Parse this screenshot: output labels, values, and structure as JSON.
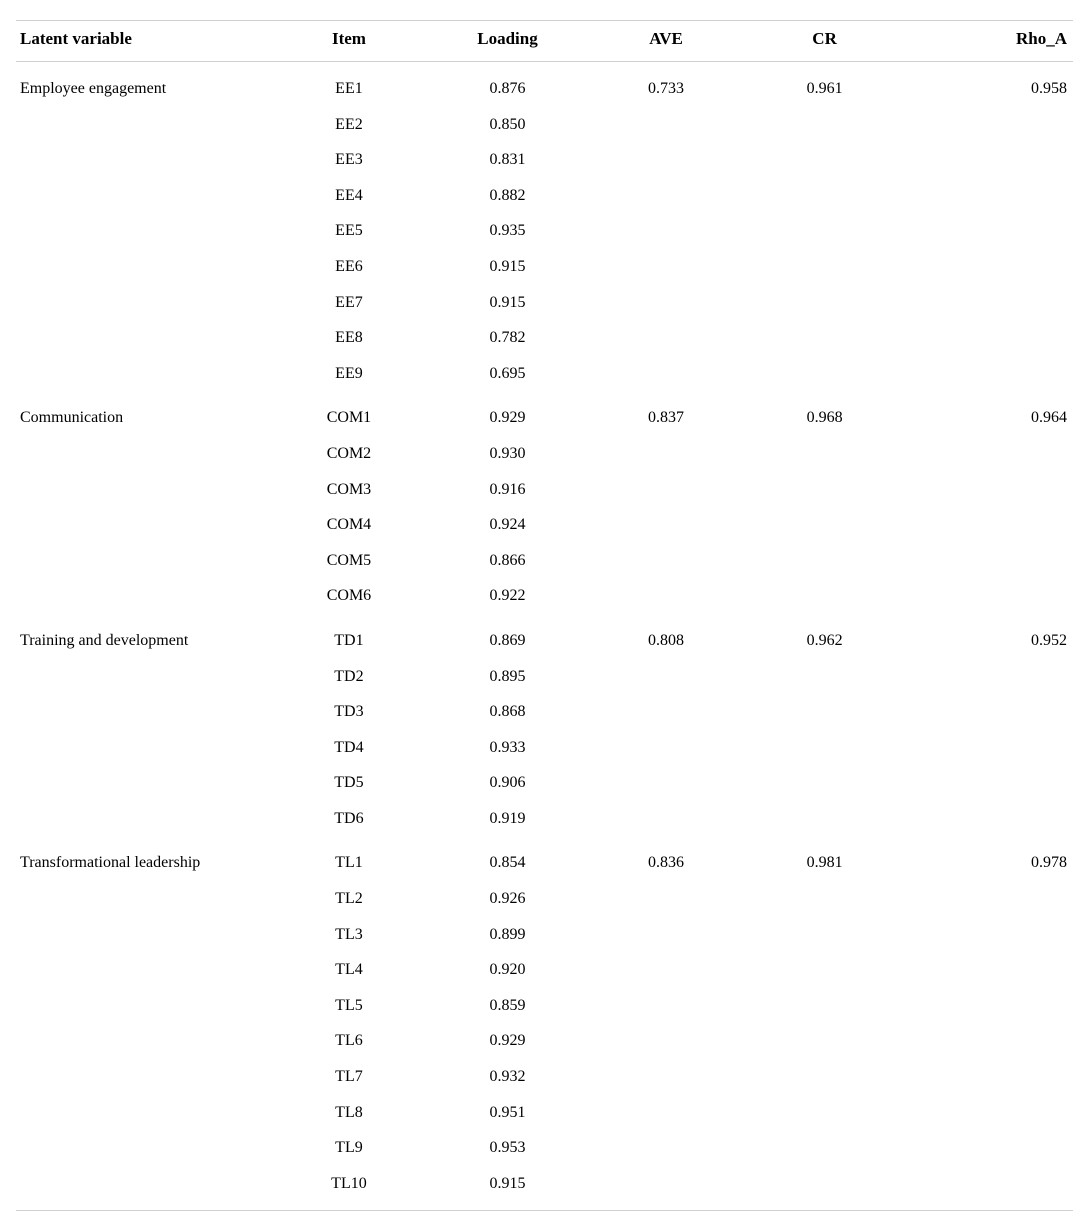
{
  "table": {
    "columns": [
      {
        "key": "latent_variable",
        "label": "Latent variable",
        "class": "col-lv"
      },
      {
        "key": "item",
        "label": "Item",
        "class": "col-item"
      },
      {
        "key": "loading",
        "label": "Loading",
        "class": "col-load"
      },
      {
        "key": "ave",
        "label": "AVE",
        "class": "col-ave"
      },
      {
        "key": "cr",
        "label": "CR",
        "class": "col-cr"
      },
      {
        "key": "rho_a",
        "label": "Rho_A",
        "class": "col-rho"
      }
    ],
    "groups": [
      {
        "name": "Employee engagement",
        "ave": "0.733",
        "cr": "0.961",
        "rho_a": "0.958",
        "items": [
          {
            "code": "EE1",
            "loading": "0.876"
          },
          {
            "code": "EE2",
            "loading": "0.850"
          },
          {
            "code": "EE3",
            "loading": "0.831"
          },
          {
            "code": "EE4",
            "loading": "0.882"
          },
          {
            "code": "EE5",
            "loading": "0.935"
          },
          {
            "code": "EE6",
            "loading": "0.915"
          },
          {
            "code": "EE7",
            "loading": "0.915"
          },
          {
            "code": "EE8",
            "loading": "0.782"
          },
          {
            "code": "EE9",
            "loading": "0.695"
          }
        ]
      },
      {
        "name": "Communication",
        "ave": "0.837",
        "cr": "0.968",
        "rho_a": "0.964",
        "items": [
          {
            "code": "COM1",
            "loading": "0.929"
          },
          {
            "code": "COM2",
            "loading": "0.930"
          },
          {
            "code": "COM3",
            "loading": "0.916"
          },
          {
            "code": "COM4",
            "loading": "0.924"
          },
          {
            "code": "COM5",
            "loading": "0.866"
          },
          {
            "code": "COM6",
            "loading": "0.922"
          }
        ]
      },
      {
        "name": "Training and development",
        "ave": "0.808",
        "cr": "0.962",
        "rho_a": "0.952",
        "items": [
          {
            "code": "TD1",
            "loading": "0.869"
          },
          {
            "code": "TD2",
            "loading": "0.895"
          },
          {
            "code": "TD3",
            "loading": "0.868"
          },
          {
            "code": "TD4",
            "loading": "0.933"
          },
          {
            "code": "TD5",
            "loading": "0.906"
          },
          {
            "code": "TD6",
            "loading": "0.919"
          }
        ]
      },
      {
        "name": "Transformational leadership",
        "ave": "0.836",
        "cr": "0.981",
        "rho_a": "0.978",
        "items": [
          {
            "code": "TL1",
            "loading": "0.854"
          },
          {
            "code": "TL2",
            "loading": "0.926"
          },
          {
            "code": "TL3",
            "loading": "0.899"
          },
          {
            "code": "TL4",
            "loading": "0.920"
          },
          {
            "code": "TL5",
            "loading": "0.859"
          },
          {
            "code": "TL6",
            "loading": "0.929"
          },
          {
            "code": "TL7",
            "loading": "0.932"
          },
          {
            "code": "TL8",
            "loading": "0.951"
          },
          {
            "code": "TL9",
            "loading": "0.953"
          },
          {
            "code": "TL10",
            "loading": "0.915"
          }
        ]
      }
    ],
    "style": {
      "font_family": "Times New Roman, serif",
      "header_fontsize_pt": 13,
      "body_fontsize_pt": 12,
      "text_color": "#000000",
      "background_color": "#ffffff",
      "rule_color": "#d0d0d0",
      "row_line_height": 1.6
    }
  }
}
